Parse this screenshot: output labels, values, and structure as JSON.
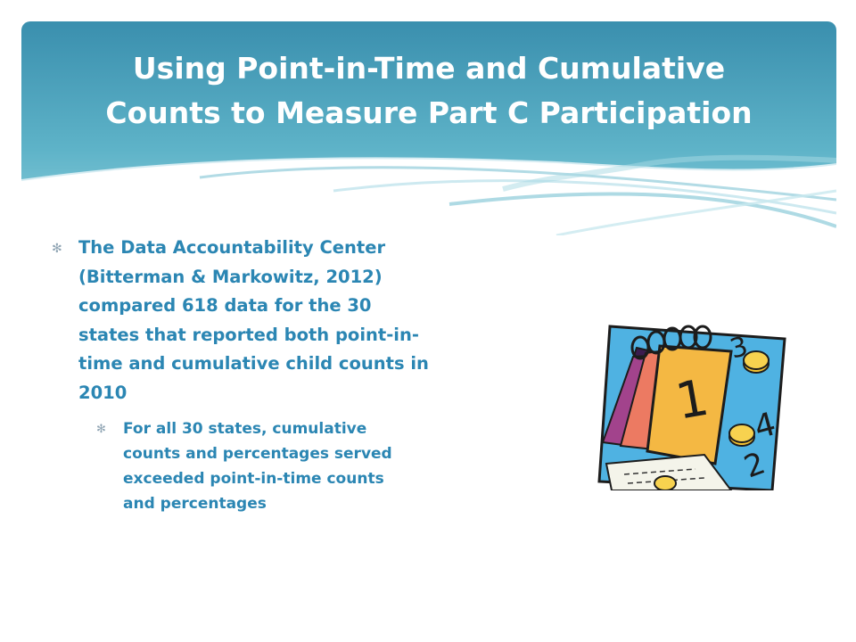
{
  "slide": {
    "title_lines": [
      "Using Point-in-Time and Cumulative",
      "Counts to Measure Part C Participation"
    ],
    "bullets": [
      {
        "marker": "✻",
        "lines": [
          "The Data Accountability Center",
          "(Bitterman & Markowitz, 2012)",
          "compared 618 data for the 30",
          "states that reported both point-in-",
          "time and cumulative child counts in",
          "2010"
        ],
        "sub_bullets": [
          {
            "marker": "✻",
            "lines": [
              "For all 30 states, cumulative",
              "counts and percentages served",
              "exceeded point-in-time counts",
              "and percentages"
            ]
          }
        ]
      }
    ],
    "clipart": {
      "icon": "calendar-icon",
      "digits": [
        "1",
        "3",
        "4",
        "2"
      ]
    },
    "colors": {
      "header_top": "#3d93b0",
      "header_bottom": "#7fc9d8",
      "body_text": "#2b86b3",
      "title_text": "#ffffff"
    }
  }
}
